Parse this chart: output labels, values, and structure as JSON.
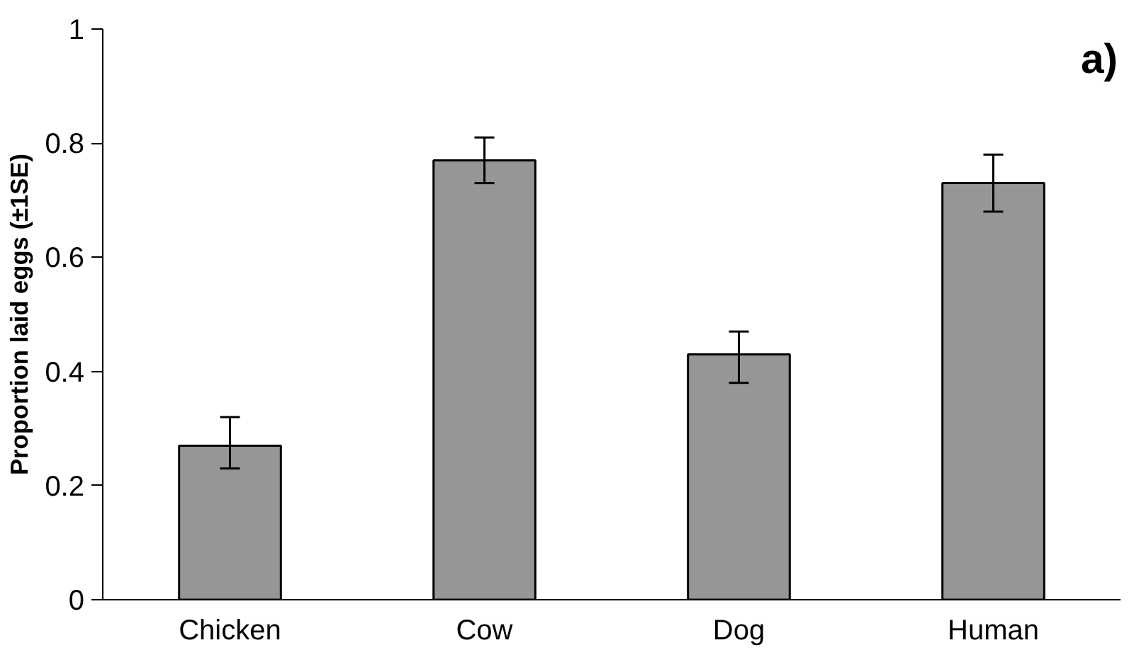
{
  "chart_data": {
    "type": "bar",
    "categories": [
      "Chicken",
      "Cow",
      "Dog",
      "Human"
    ],
    "values": [
      0.27,
      0.77,
      0.43,
      0.73
    ],
    "errors": [
      [
        0.23,
        0.32
      ],
      [
        0.73,
        0.81
      ],
      [
        0.38,
        0.47
      ],
      [
        0.68,
        0.78
      ]
    ],
    "color": "#969696",
    "ylabel": "Proportion laid eggs (±1SE)",
    "ylim": [
      0,
      1
    ],
    "yticks": [
      0,
      0.2,
      0.4,
      0.6,
      0.8,
      1
    ],
    "annotations": [
      "a)"
    ],
    "grid": false
  }
}
